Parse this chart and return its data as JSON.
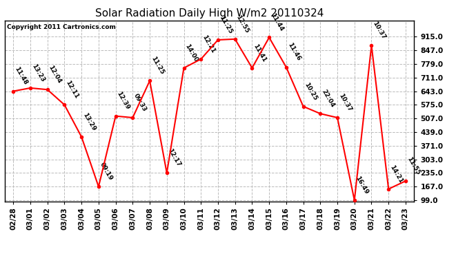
{
  "title": "Solar Radiation Daily High W/m2 20110324",
  "copyright": "Copyright 2011 Cartronics.com",
  "x_labels": [
    "02/28",
    "03/01",
    "03/02",
    "03/03",
    "03/04",
    "03/05",
    "03/06",
    "03/07",
    "03/08",
    "03/09",
    "03/10",
    "03/11",
    "03/12",
    "03/13",
    "03/14",
    "03/15",
    "03/16",
    "03/17",
    "03/18",
    "03/19",
    "03/20",
    "03/21",
    "03/22",
    "03/23"
  ],
  "y_values": [
    643,
    659,
    651,
    575,
    415,
    167,
    519,
    511,
    695,
    235,
    759,
    803,
    899,
    903,
    759,
    911,
    763,
    567,
    531,
    511,
    99,
    871,
    155,
    195
  ],
  "time_labels": [
    "11:48",
    "13:23",
    "12:04",
    "12:11",
    "13:29",
    "09:19",
    "12:39",
    "09:33",
    "11:25",
    "12:17",
    "14:00",
    "12:21",
    "11:25",
    "12:55",
    "11:41",
    "11:44",
    "11:46",
    "10:25",
    "22:04",
    "10:37",
    "16:49",
    "10:37",
    "14:21",
    "11:55"
  ],
  "y_min": 99.0,
  "y_max": 915.0,
  "y_ticks": [
    99.0,
    167.0,
    235.0,
    303.0,
    371.0,
    439.0,
    507.0,
    575.0,
    643.0,
    711.0,
    779.0,
    847.0,
    915.0
  ],
  "line_color": "#ff0000",
  "marker_color": "#ff0000",
  "bg_color": "#ffffff",
  "grid_color": "#bbbbbb",
  "title_fontsize": 11,
  "label_fontsize": 6.5,
  "tick_fontsize": 7.5,
  "copyright_fontsize": 6.5
}
